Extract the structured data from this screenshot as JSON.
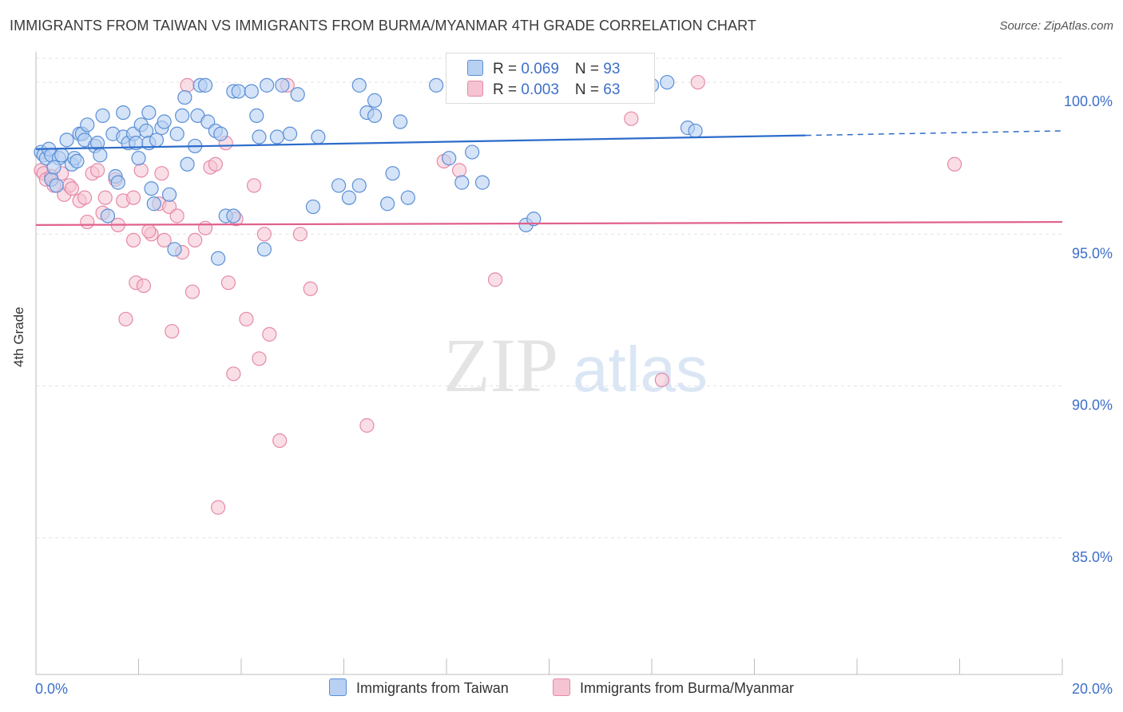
{
  "title": "IMMIGRANTS FROM TAIWAN VS IMMIGRANTS FROM BURMA/MYANMAR 4TH GRADE CORRELATION CHART",
  "source": "Source: ZipAtlas.com",
  "watermark": {
    "zip": "ZIP",
    "atlas": "atlas"
  },
  "colors": {
    "taiwan_fill": "#b8d0f2",
    "taiwan_stroke": "#5b8fd6",
    "taiwan_line": "#2d6ccb",
    "burma_fill": "#f6c3d2",
    "burma_stroke": "#e58aa8",
    "burma_line": "#e0628c",
    "tick_label": "#3d6fc8",
    "grid": "#e3e3e3"
  },
  "legend": {
    "rows": [
      {
        "r_label": "R = ",
        "r_value": "0.069",
        "n_label": "N = ",
        "n_value": "93"
      },
      {
        "r_label": "R = ",
        "r_value": "0.003",
        "n_label": "N = ",
        "n_value": "63"
      }
    ]
  },
  "chart_data": {
    "type": "scatter",
    "title": "IMMIGRANTS FROM TAIWAN VS IMMIGRANTS FROM BURMA/MYANMAR 4TH GRADE CORRELATION CHART",
    "xlabel": "",
    "ylabel": "4th Grade",
    "xlim": [
      0,
      20
    ],
    "ylim": [
      80.5,
      101.0
    ],
    "x_tick_labels": [
      "0.0%",
      "20.0%"
    ],
    "y_ticks": [
      85,
      90,
      95,
      100
    ],
    "y_tick_labels": [
      "85.0%",
      "90.0%",
      "95.0%",
      "100.0%"
    ],
    "grid": true,
    "legend_position": "bottom",
    "series": [
      {
        "name": "Immigrants from Taiwan",
        "color": "#5b8fd6",
        "r": 0.069,
        "n": 93,
        "trend": {
          "x": [
            0,
            15.0
          ],
          "y": [
            97.8,
            98.25
          ],
          "dashed_to": {
            "x": 20,
            "y": 98.4
          }
        },
        "points": [
          [
            0.1,
            97.7
          ],
          [
            0.15,
            97.6
          ],
          [
            0.2,
            97.5
          ],
          [
            0.25,
            97.8
          ],
          [
            0.3,
            97.6
          ],
          [
            0.3,
            96.8
          ],
          [
            0.4,
            96.6
          ],
          [
            0.45,
            97.5
          ],
          [
            0.5,
            97.6
          ],
          [
            0.6,
            98.1
          ],
          [
            0.7,
            97.3
          ],
          [
            0.75,
            97.5
          ],
          [
            0.8,
            97.4
          ],
          [
            0.85,
            98.3
          ],
          [
            0.9,
            98.3
          ],
          [
            0.95,
            98.1
          ],
          [
            1.0,
            98.6
          ],
          [
            1.15,
            97.9
          ],
          [
            1.2,
            98.0
          ],
          [
            1.25,
            97.6
          ],
          [
            1.3,
            98.9
          ],
          [
            1.5,
            98.3
          ],
          [
            1.55,
            96.9
          ],
          [
            1.6,
            96.7
          ],
          [
            1.7,
            98.2
          ],
          [
            1.7,
            99.0
          ],
          [
            1.8,
            98.0
          ],
          [
            1.9,
            98.3
          ],
          [
            1.95,
            98.0
          ],
          [
            2.0,
            97.5
          ],
          [
            2.05,
            98.6
          ],
          [
            2.15,
            98.4
          ],
          [
            2.2,
            98.0
          ],
          [
            2.2,
            99.0
          ],
          [
            2.3,
            96.0
          ],
          [
            2.35,
            98.1
          ],
          [
            2.45,
            98.5
          ],
          [
            2.5,
            98.7
          ],
          [
            2.6,
            96.3
          ],
          [
            2.7,
            94.5
          ],
          [
            2.75,
            98.3
          ],
          [
            2.85,
            98.9
          ],
          [
            2.9,
            99.5
          ],
          [
            2.95,
            97.3
          ],
          [
            3.1,
            97.9
          ],
          [
            3.15,
            98.9
          ],
          [
            3.2,
            99.9
          ],
          [
            3.3,
            99.9
          ],
          [
            3.35,
            98.7
          ],
          [
            3.5,
            98.4
          ],
          [
            3.55,
            94.2
          ],
          [
            3.6,
            98.3
          ],
          [
            3.7,
            95.6
          ],
          [
            3.85,
            99.7
          ],
          [
            3.95,
            99.7
          ],
          [
            4.2,
            99.7
          ],
          [
            4.3,
            98.9
          ],
          [
            4.35,
            98.2
          ],
          [
            4.45,
            94.5
          ],
          [
            4.5,
            99.9
          ],
          [
            4.7,
            98.2
          ],
          [
            4.8,
            99.9
          ],
          [
            4.95,
            98.3
          ],
          [
            5.1,
            99.6
          ],
          [
            5.5,
            98.2
          ],
          [
            5.9,
            96.6
          ],
          [
            6.1,
            96.2
          ],
          [
            6.3,
            96.6
          ],
          [
            6.3,
            99.9
          ],
          [
            6.45,
            99.0
          ],
          [
            6.6,
            98.9
          ],
          [
            6.6,
            99.4
          ],
          [
            6.85,
            96.0
          ],
          [
            6.95,
            97.0
          ],
          [
            7.1,
            98.7
          ],
          [
            7.25,
            96.2
          ],
          [
            7.8,
            99.9
          ],
          [
            8.05,
            97.5
          ],
          [
            8.3,
            96.7
          ],
          [
            8.5,
            97.7
          ],
          [
            8.7,
            96.7
          ],
          [
            9.55,
            95.3
          ],
          [
            9.7,
            95.5
          ],
          [
            11.75,
            100.0
          ],
          [
            12.0,
            99.9
          ],
          [
            12.3,
            100.0
          ],
          [
            12.7,
            98.5
          ],
          [
            12.85,
            98.4
          ],
          [
            0.35,
            97.2
          ],
          [
            3.85,
            95.6
          ],
          [
            2.25,
            96.5
          ],
          [
            1.4,
            95.6
          ],
          [
            5.4,
            95.9
          ]
        ]
      },
      {
        "name": "Immigrants from Burma/Myanmar",
        "color": "#e58aa8",
        "r": 0.003,
        "n": 63,
        "trend": {
          "x": [
            0,
            20
          ],
          "y": [
            95.3,
            95.4
          ]
        },
        "points": [
          [
            0.1,
            97.1
          ],
          [
            0.15,
            97.0
          ],
          [
            0.2,
            96.8
          ],
          [
            0.3,
            96.9
          ],
          [
            0.35,
            96.6
          ],
          [
            0.5,
            97.0
          ],
          [
            0.55,
            96.3
          ],
          [
            0.65,
            96.6
          ],
          [
            0.7,
            96.5
          ],
          [
            0.85,
            96.1
          ],
          [
            0.95,
            96.2
          ],
          [
            1.0,
            95.4
          ],
          [
            1.1,
            97.0
          ],
          [
            1.2,
            97.1
          ],
          [
            1.3,
            95.7
          ],
          [
            1.35,
            96.2
          ],
          [
            1.55,
            96.8
          ],
          [
            1.6,
            95.3
          ],
          [
            1.7,
            96.1
          ],
          [
            1.75,
            92.2
          ],
          [
            1.9,
            96.2
          ],
          [
            1.9,
            94.8
          ],
          [
            1.95,
            93.4
          ],
          [
            2.05,
            97.1
          ],
          [
            2.1,
            93.3
          ],
          [
            2.25,
            95.0
          ],
          [
            2.4,
            96.0
          ],
          [
            2.45,
            97.0
          ],
          [
            2.5,
            94.8
          ],
          [
            2.6,
            95.9
          ],
          [
            2.65,
            91.8
          ],
          [
            2.75,
            95.6
          ],
          [
            2.85,
            94.4
          ],
          [
            2.95,
            99.9
          ],
          [
            3.05,
            93.1
          ],
          [
            3.1,
            94.8
          ],
          [
            3.3,
            95.2
          ],
          [
            3.4,
            97.2
          ],
          [
            3.5,
            97.3
          ],
          [
            3.55,
            86.0
          ],
          [
            3.7,
            98.0
          ],
          [
            3.75,
            93.4
          ],
          [
            3.85,
            90.4
          ],
          [
            3.9,
            95.5
          ],
          [
            4.1,
            92.2
          ],
          [
            4.25,
            96.6
          ],
          [
            4.35,
            90.9
          ],
          [
            4.45,
            95.0
          ],
          [
            4.55,
            91.7
          ],
          [
            4.75,
            88.2
          ],
          [
            4.9,
            99.9
          ],
          [
            5.15,
            95.0
          ],
          [
            5.35,
            93.2
          ],
          [
            6.45,
            88.7
          ],
          [
            7.95,
            97.4
          ],
          [
            8.25,
            97.1
          ],
          [
            8.95,
            93.5
          ],
          [
            10.45,
            99.9
          ],
          [
            11.6,
            98.8
          ],
          [
            12.2,
            90.2
          ],
          [
            12.9,
            100.0
          ],
          [
            17.9,
            97.3
          ],
          [
            2.2,
            95.1
          ]
        ]
      }
    ]
  },
  "bottom_legend": {
    "items": [
      "Immigrants from Taiwan",
      "Immigrants from Burma/Myanmar"
    ]
  }
}
